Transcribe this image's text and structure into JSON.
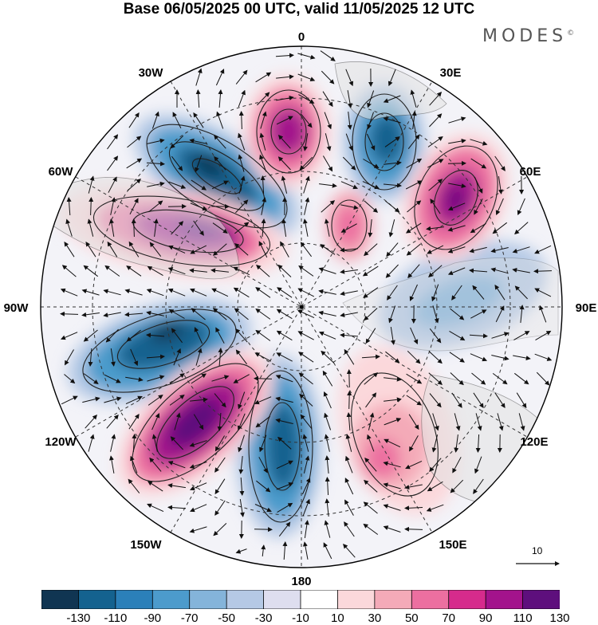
{
  "title": "Base 06/05/2025 00 UTC, valid 11/05/2025 12 UTC",
  "logo": {
    "text": "MODES",
    "mark": "©"
  },
  "map": {
    "projection": "north-polar-stereographic",
    "longitude_labels": {
      "top": "0",
      "top_right": "30E",
      "right_upper": "60E",
      "right": "90E",
      "right_lower": "120E",
      "bottom_right": "150E",
      "bottom": "180",
      "bottom_left": "150W",
      "left_lower": "120W",
      "left": "90W",
      "left_upper": "60W",
      "top_left": "30W"
    },
    "fields": [
      "shaded anomaly",
      "wind vectors",
      "streamlines",
      "coastlines"
    ]
  },
  "reference_vector": {
    "label": "10"
  },
  "colorbar": {
    "ticks": [
      "-130",
      "-110",
      "-90",
      "-70",
      "-50",
      "-30",
      "-10",
      "10",
      "30",
      "50",
      "70",
      "90",
      "110",
      "130"
    ],
    "colors": [
      "#103552",
      "#14628f",
      "#2b80b9",
      "#4c9bcc",
      "#84b4da",
      "#b5c9e5",
      "#dedeef",
      "#ffffff",
      "#fbd8db",
      "#f4aab8",
      "#ec6fa0",
      "#d62b8c",
      "#a3138c",
      "#5e0f7d"
    ]
  }
}
